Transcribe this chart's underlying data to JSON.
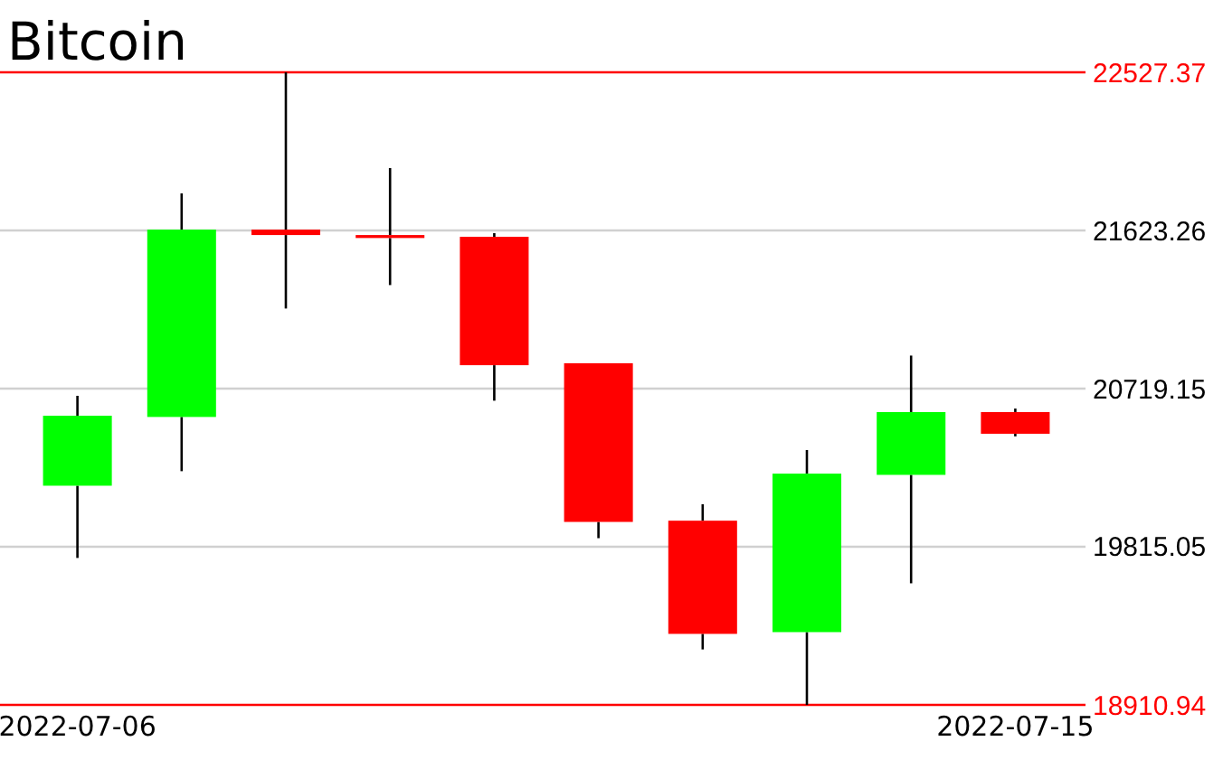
{
  "chart_data": {
    "type": "candlestick",
    "title": "Bitcoin",
    "categories": [
      "2022-07-06",
      null,
      null,
      null,
      null,
      null,
      null,
      null,
      null,
      "2022-07-15"
    ],
    "ohlc": [
      [
        20164,
        20678,
        19751,
        20564
      ],
      [
        20557,
        21835,
        20247,
        21628
      ],
      [
        21628,
        22527,
        21177,
        21597
      ],
      [
        21597,
        21980,
        21311,
        21580
      ],
      [
        21587,
        21608,
        20650,
        20853
      ],
      [
        20864,
        20864,
        19864,
        19957
      ],
      [
        19964,
        20058,
        19228,
        19317
      ],
      [
        19327,
        20368,
        18910.94,
        20233
      ],
      [
        20226,
        20908,
        19606,
        20585
      ],
      [
        20585,
        20605,
        20446,
        20461
      ]
    ],
    "colors": [
      "#00ff00",
      "#00ff00",
      "#ff0000",
      "#ff0000",
      "#ff0000",
      "#ff0000",
      "#ff0000",
      "#00ff00",
      "#00ff00",
      "#ff0000"
    ],
    "ylim": [
      18910.94,
      22527.37
    ],
    "yticks": [
      18910.94,
      19815.05,
      20719.15,
      21623.26,
      22527.37
    ],
    "grid": "y"
  }
}
